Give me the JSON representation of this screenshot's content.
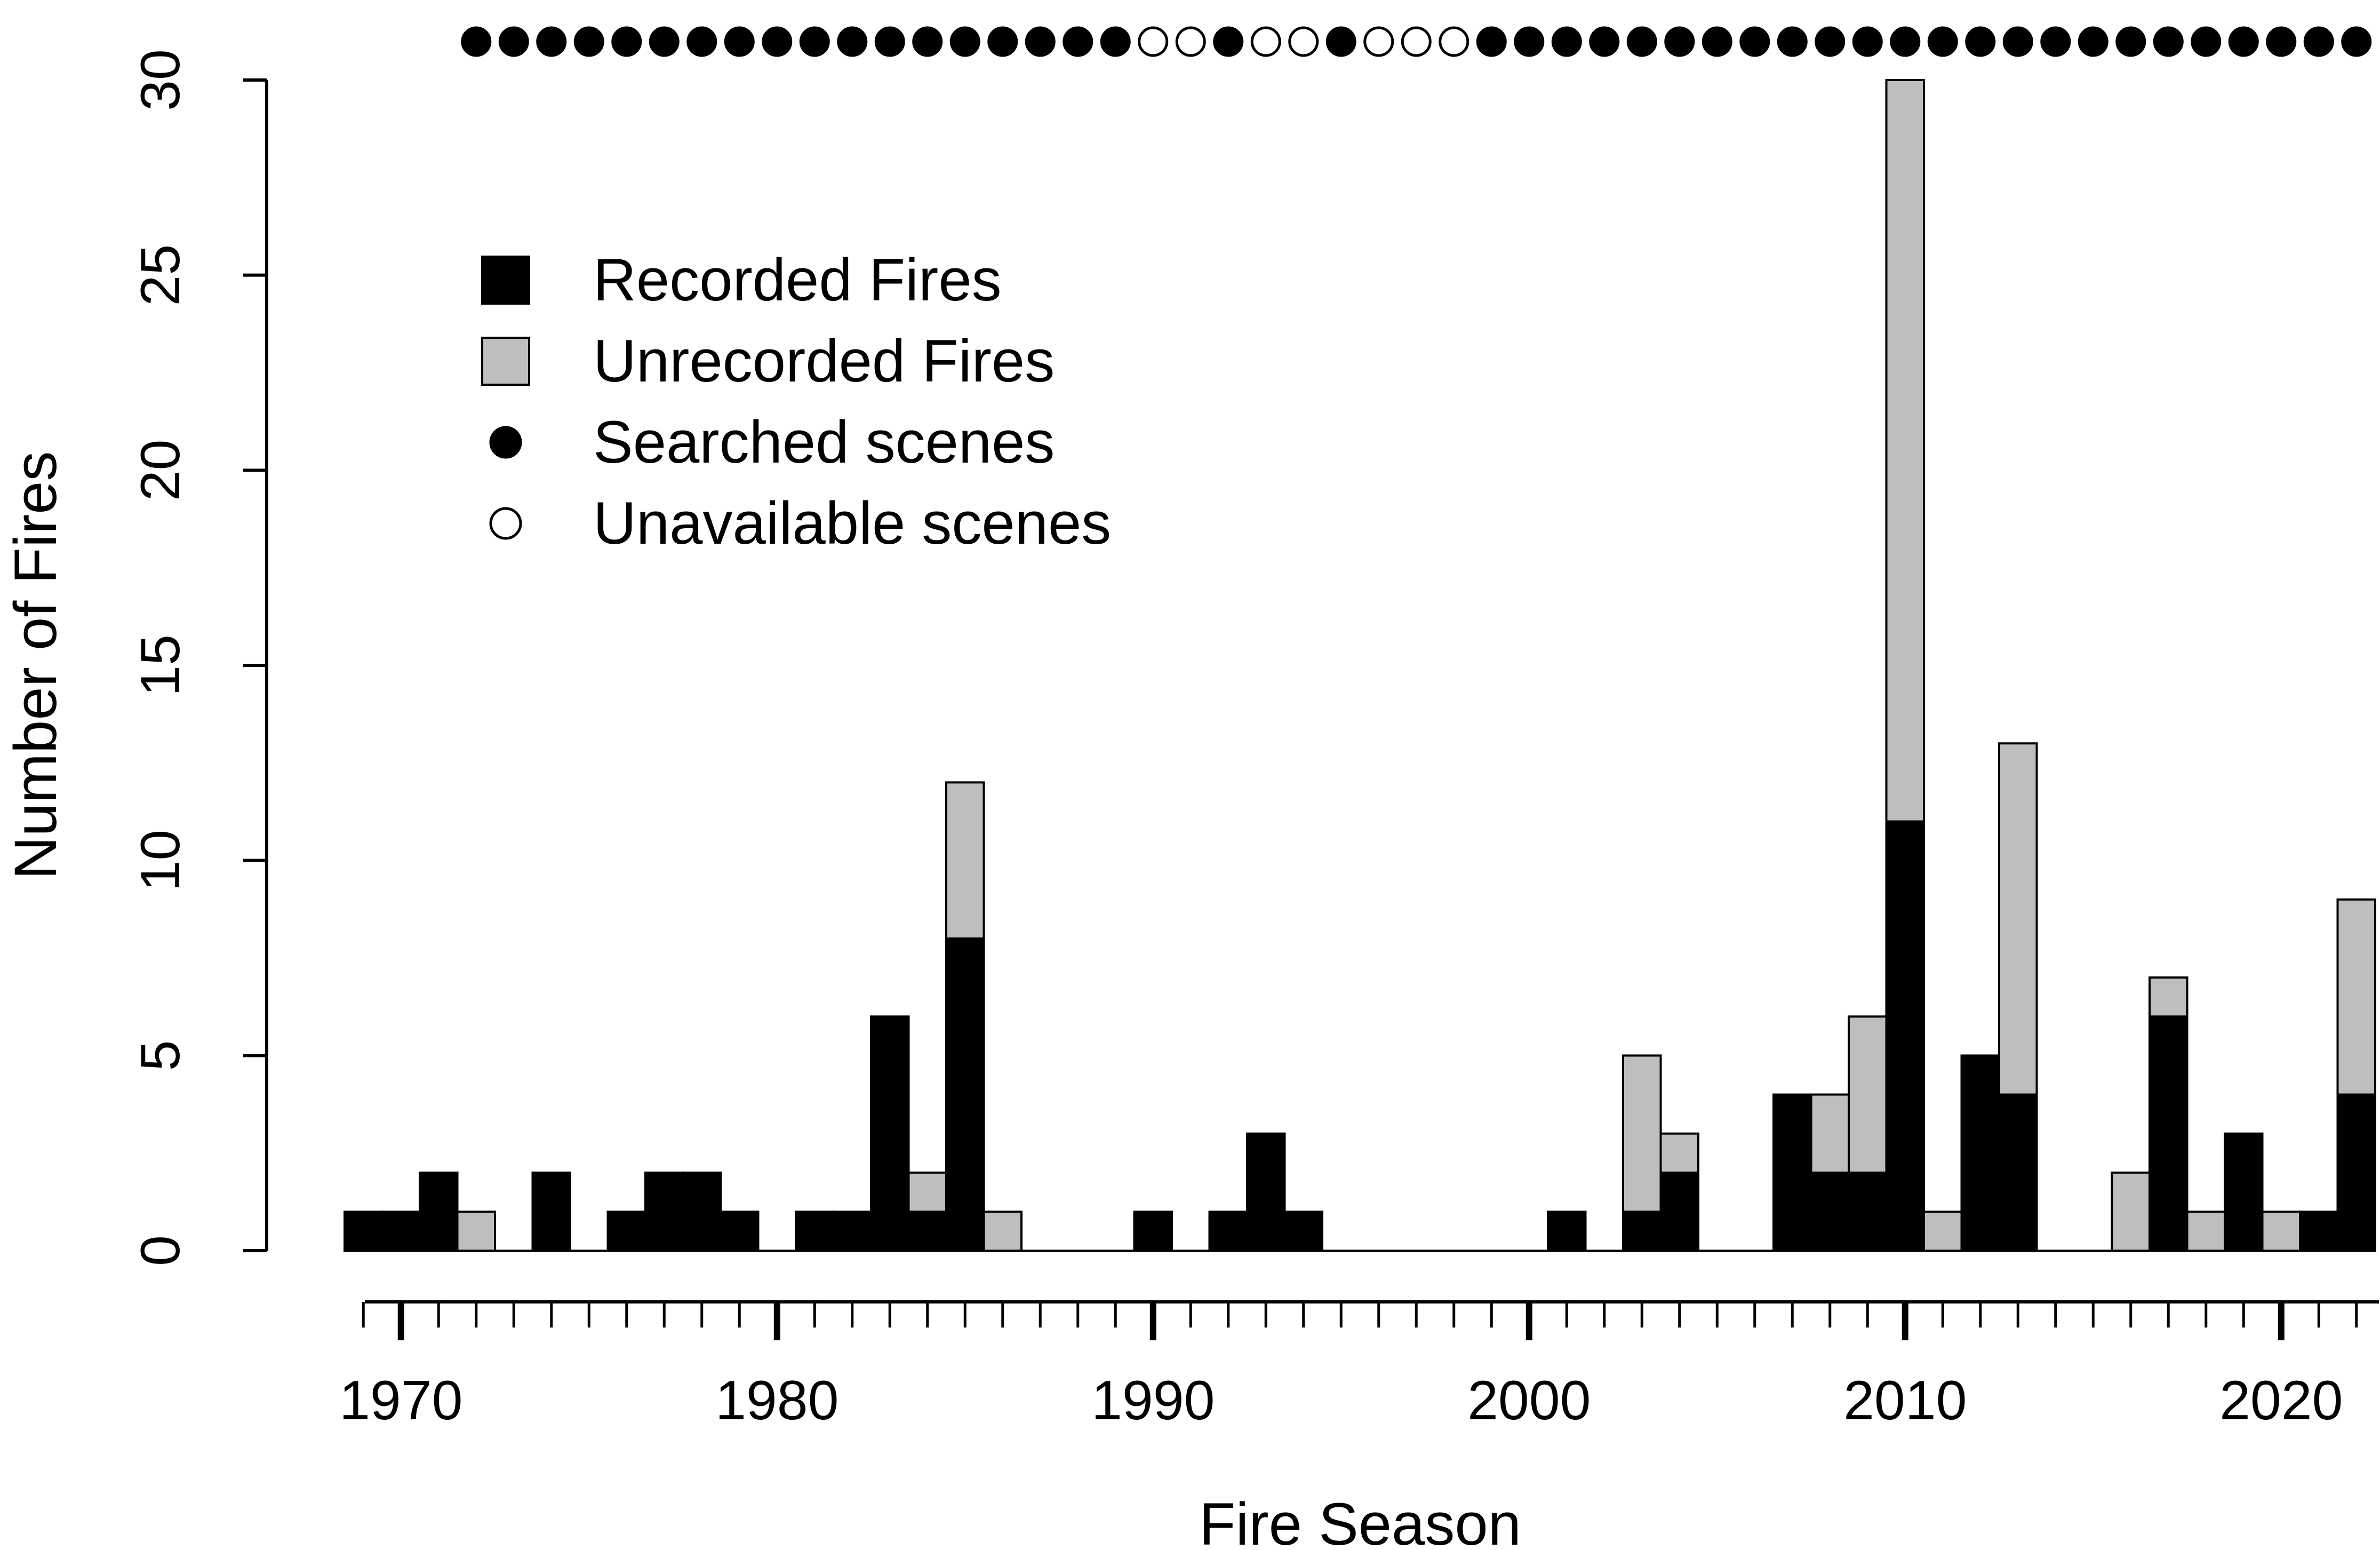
{
  "chart_data": {
    "type": "bar",
    "stacked": true,
    "xlabel": "Fire Season",
    "ylabel": "Number of Fires",
    "ylim": [
      0,
      30
    ],
    "y_ticks": [
      0,
      5,
      10,
      15,
      20,
      25,
      30
    ],
    "x_major_ticks": [
      1970,
      1980,
      1990,
      2000,
      2010,
      2020
    ],
    "years": [
      1969,
      1970,
      1971,
      1972,
      1973,
      1974,
      1975,
      1976,
      1977,
      1978,
      1979,
      1980,
      1981,
      1982,
      1983,
      1984,
      1985,
      1986,
      1987,
      1988,
      1989,
      1990,
      1991,
      1992,
      1993,
      1994,
      1995,
      1996,
      1997,
      1998,
      1999,
      2000,
      2001,
      2002,
      2003,
      2004,
      2005,
      2006,
      2007,
      2008,
      2009,
      2010,
      2011,
      2012,
      2013,
      2014,
      2015,
      2016,
      2017,
      2018,
      2019,
      2020,
      2021,
      2022
    ],
    "series": [
      {
        "name": "Recorded Fires",
        "color": "#000000",
        "values": [
          1,
          1,
          2,
          0,
          0,
          2,
          0,
          1,
          2,
          2,
          1,
          0,
          1,
          1,
          6,
          1,
          8,
          0,
          0,
          0,
          0,
          1,
          0,
          1,
          3,
          1,
          0,
          0,
          0,
          0,
          0,
          0,
          1,
          0,
          1,
          2,
          0,
          0,
          4,
          2,
          2,
          11,
          0,
          5,
          4,
          0,
          0,
          0,
          6,
          0,
          3,
          0,
          1,
          4
        ]
      },
      {
        "name": "Unrecorded Fires",
        "color": "#bebebe",
        "values": [
          0,
          0,
          0,
          1,
          0,
          0,
          0,
          0,
          0,
          0,
          0,
          0,
          0,
          0,
          0,
          1,
          4,
          1,
          0,
          0,
          0,
          0,
          0,
          0,
          0,
          0,
          0,
          0,
          0,
          0,
          0,
          0,
          0,
          0,
          4,
          1,
          0,
          0,
          0,
          2,
          4,
          19,
          1,
          0,
          9,
          0,
          0,
          2,
          1,
          1,
          0,
          1,
          0,
          5
        ]
      }
    ],
    "scene_availability": {
      "years": [
        1972,
        1973,
        1974,
        1975,
        1976,
        1977,
        1978,
        1979,
        1980,
        1981,
        1982,
        1983,
        1984,
        1985,
        1986,
        1987,
        1988,
        1989,
        1990,
        1991,
        1992,
        1993,
        1994,
        1995,
        1996,
        1997,
        1998,
        1999,
        2000,
        2001,
        2002,
        2003,
        2004,
        2005,
        2006,
        2007,
        2008,
        2009,
        2010,
        2011,
        2012,
        2013,
        2014,
        2015,
        2016,
        2017,
        2018,
        2019,
        2020,
        2021,
        2022
      ],
      "searched": [
        true,
        true,
        true,
        true,
        true,
        true,
        true,
        true,
        true,
        true,
        true,
        true,
        true,
        true,
        true,
        true,
        true,
        true,
        false,
        false,
        true,
        false,
        false,
        true,
        false,
        false,
        false,
        true,
        true,
        true,
        true,
        true,
        true,
        true,
        true,
        true,
        true,
        true,
        true,
        true,
        true,
        true,
        true,
        true,
        true,
        true,
        true,
        true,
        true,
        true,
        true
      ]
    },
    "legend": {
      "placement": "top-left",
      "entries": [
        {
          "label": "Recorded Fires",
          "marker": "filled-square",
          "color": "#000000"
        },
        {
          "label": "Unrecorded Fires",
          "marker": "filled-square",
          "color": "#bebebe"
        },
        {
          "label": "Searched scenes",
          "marker": "filled-circle",
          "color": "#000000"
        },
        {
          "label": "Unavailable scenes",
          "marker": "open-circle",
          "color": "#000000"
        }
      ]
    }
  }
}
